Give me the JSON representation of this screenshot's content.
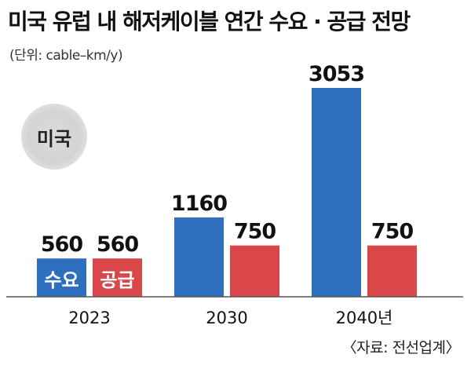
{
  "title": "미국 유럽 내 해저케이블 연간 수요 · 공급 전망",
  "unit": "(단위: cable–km/y)",
  "region": "미국",
  "source": "〈자료: 전선업계〉",
  "colors": {
    "demand": "#2f6fc0",
    "supply": "#d9474b",
    "axis": "#555555"
  },
  "chart_data": {
    "type": "bar",
    "categories": [
      "2023",
      "2030",
      "2040년"
    ],
    "series": [
      {
        "name": "수요",
        "values": [
          560,
          1160,
          3053
        ]
      },
      {
        "name": "공급",
        "values": [
          560,
          750,
          750
        ]
      }
    ],
    "ylim": [
      0,
      3053
    ],
    "legend": "inline on first group",
    "grid": false
  }
}
